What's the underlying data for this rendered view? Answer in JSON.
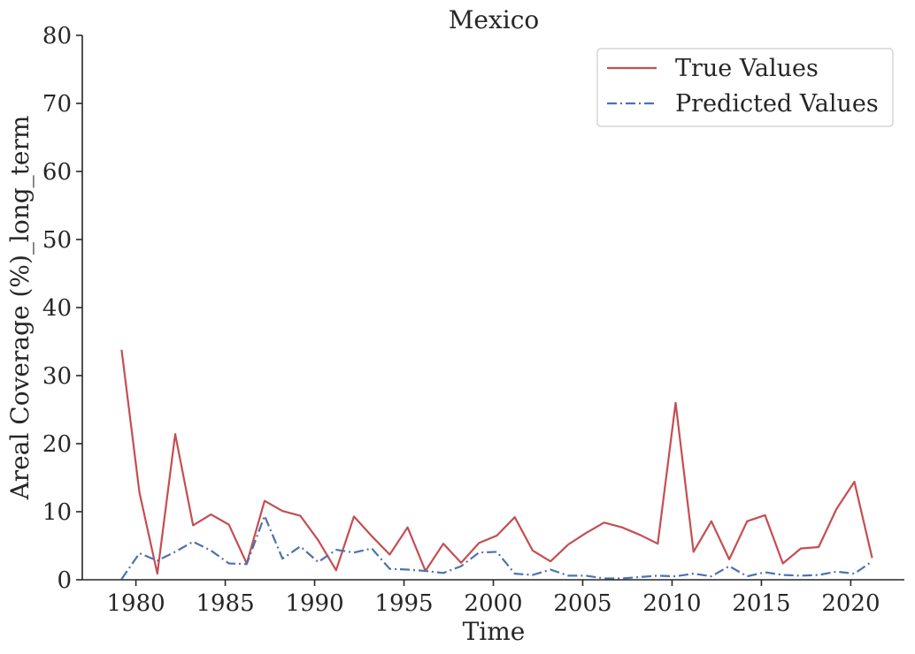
{
  "chart_data": {
    "type": "line",
    "title": "Mexico",
    "xlabel": "Time",
    "ylabel": "Areal Coverage (%)_long_term",
    "xlim": [
      1977,
      2023
    ],
    "ylim": [
      0,
      80
    ],
    "xticks": [
      1980,
      1985,
      1990,
      1995,
      2000,
      2005,
      2010,
      2015,
      2020
    ],
    "yticks": [
      0,
      10,
      20,
      30,
      40,
      50,
      60,
      70,
      80
    ],
    "grid": false,
    "legend_position": "top-right",
    "x": [
      1979.2,
      1980.2,
      1981.2,
      1982.2,
      1983.2,
      1984.2,
      1985.2,
      1986.2,
      1987.2,
      1988.2,
      1989.2,
      1990.2,
      1991.2,
      1992.2,
      1993.2,
      1994.2,
      1995.2,
      1996.2,
      1997.2,
      1998.2,
      1999.2,
      2000.2,
      2001.2,
      2002.2,
      2003.2,
      2004.2,
      2005.2,
      2006.2,
      2007.2,
      2008.2,
      2009.2,
      2010.2,
      2011.2,
      2012.2,
      2013.2,
      2014.2,
      2015.2,
      2016.2,
      2017.2,
      2018.2,
      2019.2,
      2020.2,
      2021.2
    ],
    "series": [
      {
        "name": "True Values",
        "color": "#c44e52",
        "style": "solid",
        "values": [
          33.8,
          12.8,
          0.9,
          21.4,
          8.0,
          9.6,
          8.1,
          2.4,
          11.6,
          10.1,
          9.4,
          5.8,
          1.4,
          9.3,
          6.4,
          3.7,
          7.7,
          1.3,
          5.3,
          2.5,
          5.4,
          6.5,
          9.2,
          4.3,
          2.7,
          5.2,
          6.9,
          8.4,
          7.7,
          6.6,
          5.3,
          26.0,
          4.1,
          8.6,
          3.0,
          8.6,
          9.5,
          2.4,
          4.6,
          4.8,
          10.4,
          14.4,
          3.2
        ]
      },
      {
        "name": "Predicted Values",
        "color": "#4c72b0",
        "style": "dashdot",
        "values": [
          0.1,
          3.9,
          2.8,
          4.1,
          5.6,
          4.3,
          2.4,
          2.3,
          9.4,
          3.1,
          4.9,
          2.6,
          4.4,
          4.0,
          4.6,
          1.6,
          1.5,
          1.3,
          1.0,
          2.0,
          4.0,
          4.1,
          0.9,
          0.7,
          1.5,
          0.6,
          0.6,
          0.2,
          0.2,
          0.4,
          0.6,
          0.5,
          0.9,
          0.5,
          2.0,
          0.5,
          1.1,
          0.7,
          0.6,
          0.7,
          1.2,
          0.9,
          2.7
        ]
      }
    ]
  }
}
